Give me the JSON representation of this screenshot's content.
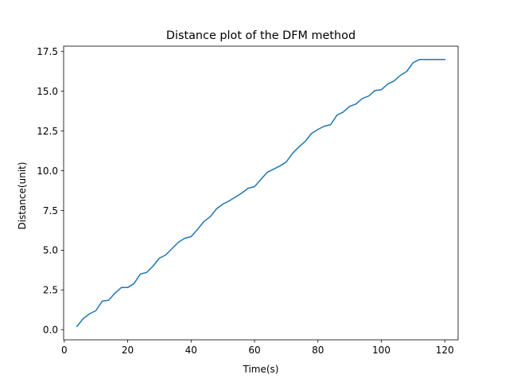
{
  "chart_data": {
    "type": "line",
    "title": "Distance plot of the DFM method",
    "xlabel": "Time(s)",
    "ylabel": "Distance(unit)",
    "xlim": [
      -0.2,
      124.2
    ],
    "ylim": [
      -0.64,
      17.84
    ],
    "xticks": [
      0,
      20,
      40,
      60,
      80,
      100,
      120
    ],
    "yticks": [
      0.0,
      2.5,
      5.0,
      7.5,
      10.0,
      12.5,
      15.0,
      17.5
    ],
    "xtick_labels": [
      "0",
      "20",
      "40",
      "60",
      "80",
      "100",
      "120"
    ],
    "ytick_labels": [
      "0.0",
      "2.5",
      "5.0",
      "7.5",
      "10.0",
      "12.5",
      "15.0",
      "17.5"
    ],
    "grid": false,
    "series": [
      {
        "color": "#1f77b4",
        "x": [
          4,
          6,
          8,
          10,
          12,
          14,
          16,
          18,
          20,
          22,
          24,
          26,
          28,
          30,
          32,
          34,
          36,
          38,
          40,
          42,
          44,
          46,
          48,
          50,
          52,
          54,
          56,
          58,
          60,
          62,
          64,
          66,
          68,
          70,
          72,
          74,
          76,
          78,
          80,
          82,
          84,
          86,
          88,
          90,
          92,
          94,
          96,
          98,
          100,
          102,
          104,
          106,
          108,
          110,
          112,
          114,
          116,
          118,
          120
        ],
        "y": [
          0.2,
          0.7,
          1.0,
          1.2,
          1.8,
          1.85,
          2.3,
          2.65,
          2.65,
          2.9,
          3.5,
          3.6,
          4.0,
          4.5,
          4.7,
          5.1,
          5.5,
          5.75,
          5.85,
          6.3,
          6.8,
          7.1,
          7.6,
          7.9,
          8.1,
          8.35,
          8.6,
          8.9,
          9.0,
          9.45,
          9.9,
          10.1,
          10.3,
          10.55,
          11.1,
          11.5,
          11.85,
          12.35,
          12.6,
          12.8,
          12.9,
          13.5,
          13.7,
          14.05,
          14.2,
          14.55,
          14.7,
          15.05,
          15.1,
          15.45,
          15.65,
          16.0,
          16.25,
          16.8,
          17.0,
          17.0,
          17.0,
          17.0,
          17.0
        ]
      }
    ]
  }
}
